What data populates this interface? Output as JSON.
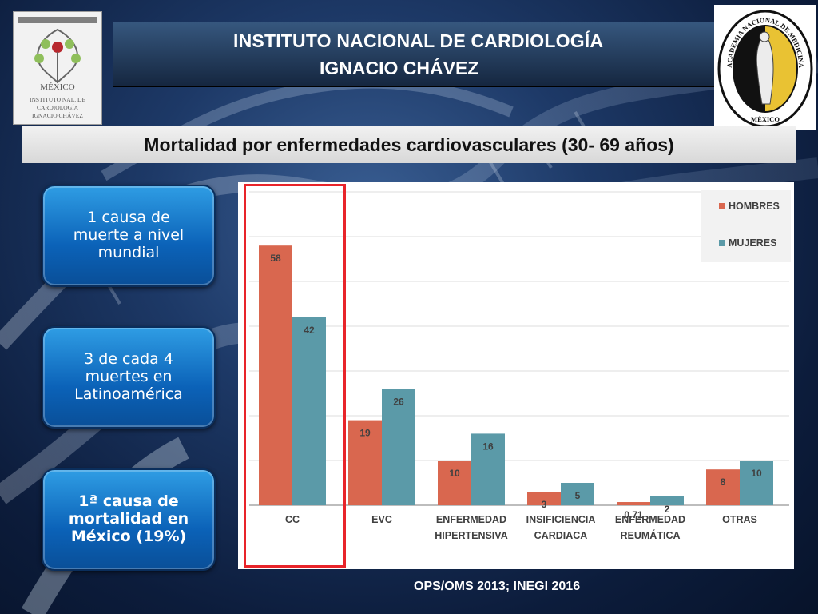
{
  "header": {
    "line1": "INSTITUTO NACIONAL DE CARDIOLOGÍA",
    "line2": "IGNACIO CHÁVEZ"
  },
  "logos": {
    "left_text": [
      "MÉXICO",
      "INSTITUTO NAL. DE",
      "CARDIOLOGÍA",
      "IGNACIO CHÁVEZ"
    ],
    "right_ring_text": "ACADEMIA NACIONAL DE MEDICINA",
    "right_bottom_text": "MÉXICO"
  },
  "subtitle": "Mortalidad por enfermedades cardiovasculares (30- 69 años)",
  "callouts": [
    {
      "lines": [
        "1 causa de",
        "muerte a nivel",
        "mundial"
      ]
    },
    {
      "lines": [
        "3 de cada 4",
        "muertes en",
        "Latinoamérica"
      ]
    },
    {
      "lines": [
        "1ª causa de",
        "mortalidad en",
        "México (19%)"
      ]
    }
  ],
  "chart_data": {
    "type": "bar",
    "categories": [
      [
        "CC"
      ],
      [
        "EVC"
      ],
      [
        "ENFERMEDAD",
        "HIPERTENSIVA"
      ],
      [
        "INSIFICIENCIA",
        "CARDIACA"
      ],
      [
        "ENFERMEDAD",
        "REUMÁTICA"
      ],
      [
        "OTRAS"
      ]
    ],
    "series": [
      {
        "name": "HOMBRES",
        "values": [
          58,
          19,
          10,
          3,
          0.71,
          8
        ],
        "labels": [
          "58",
          "19",
          "10",
          "3",
          "0.71",
          "8"
        ],
        "color": "#d9674f"
      },
      {
        "name": "MUJERES",
        "values": [
          42,
          26,
          16,
          5,
          2,
          10
        ],
        "labels": [
          "42",
          "26",
          "16",
          "5",
          "2",
          "10"
        ],
        "color": "#5b9aa8"
      }
    ],
    "ylim": [
      0,
      70
    ],
    "grid": true,
    "legend": "top-right",
    "highlight_category": "CC",
    "highlight_color": "#e8242a"
  },
  "source": "OPS/OMS 2013; INEGI 2016"
}
